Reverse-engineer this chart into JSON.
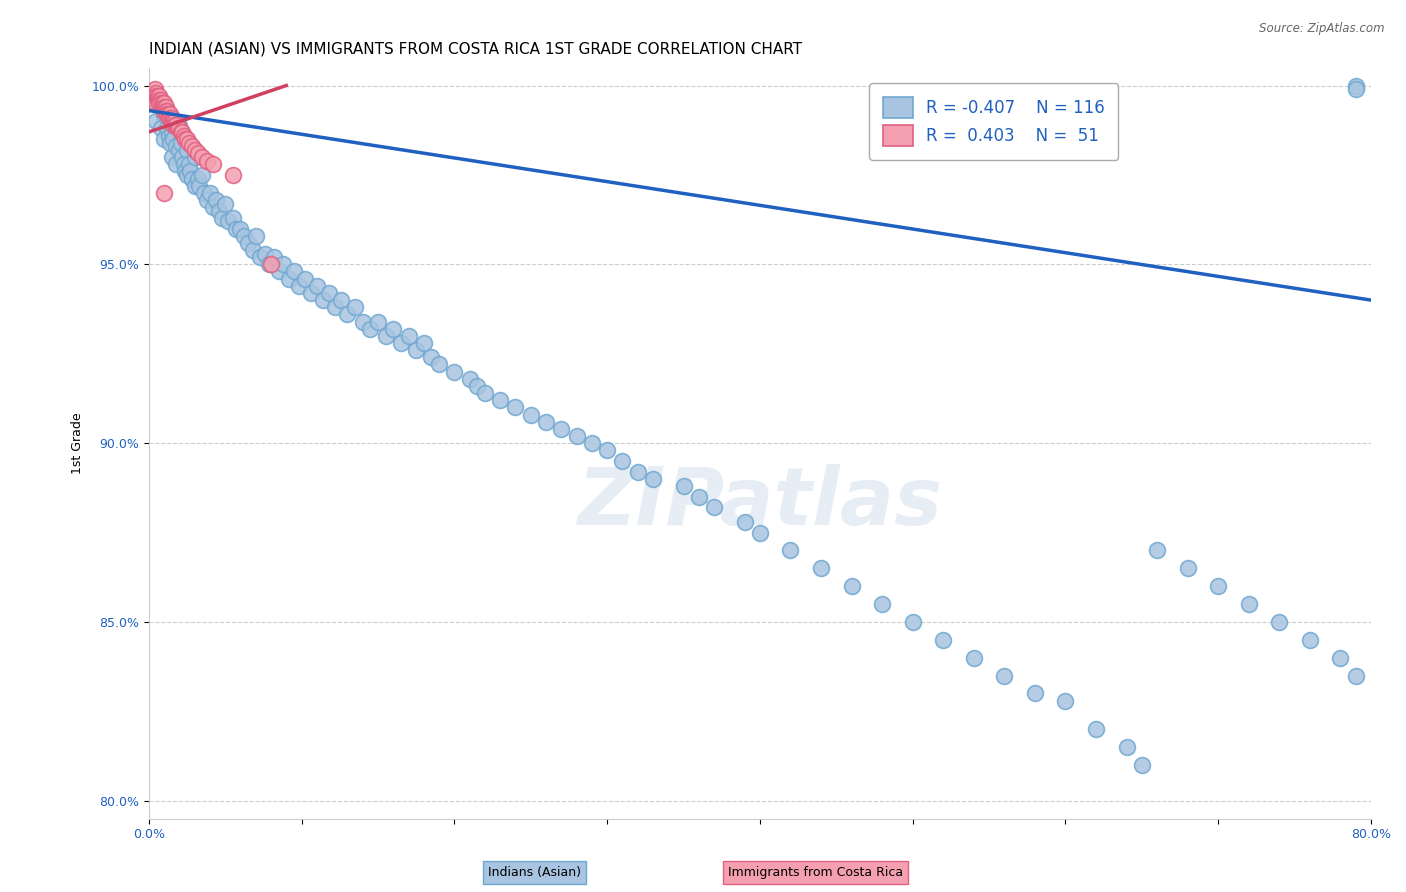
{
  "title": "INDIAN (ASIAN) VS IMMIGRANTS FROM COSTA RICA 1ST GRADE CORRELATION CHART",
  "source": "Source: ZipAtlas.com",
  "ylabel": "1st Grade",
  "xlim": [
    0.0,
    0.8
  ],
  "ylim": [
    0.795,
    1.005
  ],
  "xticks": [
    0.0,
    0.1,
    0.2,
    0.3,
    0.4,
    0.5,
    0.6,
    0.7,
    0.8
  ],
  "xticklabels": [
    "0.0%",
    "",
    "",
    "",
    "",
    "",
    "",
    "",
    "80.0%"
  ],
  "yticks": [
    0.8,
    0.85,
    0.9,
    0.95,
    1.0
  ],
  "yticklabels": [
    "80.0%",
    "85.0%",
    "90.0%",
    "95.0%",
    "100.0%"
  ],
  "blue_color": "#a8c4e0",
  "blue_edge": "#6fa8d0",
  "pink_color": "#f4a0b0",
  "pink_edge": "#e06080",
  "blue_line_color": "#2060c0",
  "pink_line_color": "#d04060",
  "legend_R_blue": "-0.407",
  "legend_N_blue": "116",
  "legend_R_pink": "0.403",
  "legend_N_pink": "51",
  "title_fontsize": 11,
  "axis_label_fontsize": 9,
  "tick_fontsize": 9,
  "watermark": "ZIPatlas",
  "blue_scatter_x": [
    0.005,
    0.008,
    0.01,
    0.01,
    0.012,
    0.013,
    0.014,
    0.015,
    0.015,
    0.016,
    0.018,
    0.018,
    0.02,
    0.02,
    0.021,
    0.022,
    0.023,
    0.024,
    0.025,
    0.025,
    0.026,
    0.027,
    0.028,
    0.03,
    0.03,
    0.032,
    0.033,
    0.035,
    0.036,
    0.038,
    0.04,
    0.042,
    0.044,
    0.046,
    0.048,
    0.05,
    0.052,
    0.055,
    0.057,
    0.06,
    0.062,
    0.065,
    0.068,
    0.07,
    0.073,
    0.076,
    0.079,
    0.082,
    0.085,
    0.088,
    0.092,
    0.095,
    0.098,
    0.102,
    0.106,
    0.11,
    0.114,
    0.118,
    0.122,
    0.126,
    0.13,
    0.135,
    0.14,
    0.145,
    0.15,
    0.155,
    0.16,
    0.165,
    0.17,
    0.175,
    0.18,
    0.185,
    0.19,
    0.2,
    0.21,
    0.215,
    0.22,
    0.23,
    0.24,
    0.25,
    0.26,
    0.27,
    0.28,
    0.29,
    0.3,
    0.31,
    0.32,
    0.33,
    0.35,
    0.36,
    0.37,
    0.39,
    0.4,
    0.42,
    0.44,
    0.46,
    0.48,
    0.5,
    0.52,
    0.54,
    0.56,
    0.58,
    0.6,
    0.62,
    0.64,
    0.65,
    0.66,
    0.68,
    0.7,
    0.72,
    0.74,
    0.76,
    0.78,
    0.79,
    0.79,
    0.79
  ],
  "blue_scatter_y": [
    0.99,
    0.988,
    0.992,
    0.985,
    0.988,
    0.986,
    0.984,
    0.987,
    0.98,
    0.985,
    0.983,
    0.978,
    0.989,
    0.982,
    0.984,
    0.98,
    0.978,
    0.976,
    0.982,
    0.975,
    0.978,
    0.976,
    0.974,
    0.98,
    0.972,
    0.974,
    0.972,
    0.975,
    0.97,
    0.968,
    0.97,
    0.966,
    0.968,
    0.965,
    0.963,
    0.967,
    0.962,
    0.963,
    0.96,
    0.96,
    0.958,
    0.956,
    0.954,
    0.958,
    0.952,
    0.953,
    0.95,
    0.952,
    0.948,
    0.95,
    0.946,
    0.948,
    0.944,
    0.946,
    0.942,
    0.944,
    0.94,
    0.942,
    0.938,
    0.94,
    0.936,
    0.938,
    0.934,
    0.932,
    0.934,
    0.93,
    0.932,
    0.928,
    0.93,
    0.926,
    0.928,
    0.924,
    0.922,
    0.92,
    0.918,
    0.916,
    0.914,
    0.912,
    0.91,
    0.908,
    0.906,
    0.904,
    0.902,
    0.9,
    0.898,
    0.895,
    0.892,
    0.89,
    0.888,
    0.885,
    0.882,
    0.878,
    0.875,
    0.87,
    0.865,
    0.86,
    0.855,
    0.85,
    0.845,
    0.84,
    0.835,
    0.83,
    0.828,
    0.82,
    0.815,
    0.81,
    0.87,
    0.865,
    0.86,
    0.855,
    0.85,
    0.845,
    0.84,
    0.835,
    1.0,
    0.999
  ],
  "pink_scatter_x": [
    0.003,
    0.004,
    0.004,
    0.005,
    0.005,
    0.005,
    0.005,
    0.006,
    0.006,
    0.007,
    0.007,
    0.007,
    0.008,
    0.008,
    0.009,
    0.009,
    0.01,
    0.01,
    0.01,
    0.011,
    0.011,
    0.012,
    0.012,
    0.013,
    0.013,
    0.014,
    0.014,
    0.015,
    0.015,
    0.016,
    0.016,
    0.017,
    0.017,
    0.018,
    0.019,
    0.02,
    0.021,
    0.022,
    0.023,
    0.024,
    0.025,
    0.026,
    0.028,
    0.03,
    0.032,
    0.035,
    0.038,
    0.042,
    0.055,
    0.08,
    0.01
  ],
  "pink_scatter_y": [
    0.998,
    0.999,
    0.997,
    0.998,
    0.997,
    0.996,
    0.995,
    0.997,
    0.996,
    0.997,
    0.996,
    0.995,
    0.996,
    0.995,
    0.995,
    0.994,
    0.995,
    0.994,
    0.993,
    0.994,
    0.993,
    0.993,
    0.992,
    0.992,
    0.991,
    0.992,
    0.991,
    0.991,
    0.99,
    0.99,
    0.989,
    0.99,
    0.989,
    0.989,
    0.988,
    0.988,
    0.987,
    0.987,
    0.986,
    0.985,
    0.985,
    0.984,
    0.983,
    0.982,
    0.981,
    0.98,
    0.979,
    0.978,
    0.975,
    0.95,
    0.97
  ],
  "blue_trend_x": [
    0.0,
    0.8
  ],
  "blue_trend_y": [
    0.993,
    0.94
  ],
  "pink_trend_x": [
    0.0,
    0.09
  ],
  "pink_trend_y": [
    0.987,
    1.0
  ]
}
